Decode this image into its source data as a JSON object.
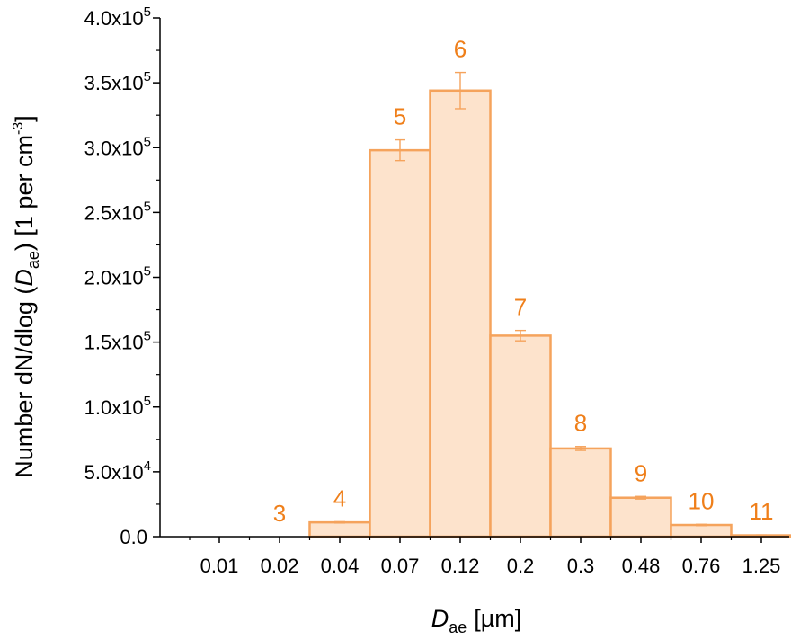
{
  "chart_data": {
    "type": "bar",
    "xlabel": {
      "symbol": "D",
      "subscript": "ae",
      "unit": "[µm]"
    },
    "ylabel": {
      "prefix": "Number dN/dlog (",
      "symbol": "D",
      "subscript": "ae",
      "suffix": ") [1 per cm",
      "exp": "-3",
      "close": "]"
    },
    "x_tick_labels": [
      "0.01",
      "0.02",
      "0.04",
      "0.07",
      "0.12",
      "0.2",
      "0.3",
      "0.48",
      "0.76",
      "1.25"
    ],
    "y_tick_labels": [
      {
        "mant": "0.0",
        "exp": ""
      },
      {
        "mant": "5.0x10",
        "exp": "4"
      },
      {
        "mant": "1.0x10",
        "exp": "5"
      },
      {
        "mant": "1.5x10",
        "exp": "5"
      },
      {
        "mant": "2.0x10",
        "exp": "5"
      },
      {
        "mant": "2.5x10",
        "exp": "5"
      },
      {
        "mant": "3.0x10",
        "exp": "5"
      },
      {
        "mant": "3.5x10",
        "exp": "5"
      },
      {
        "mant": "4.0x10",
        "exp": "5"
      }
    ],
    "ylim": [
      0,
      400000
    ],
    "bars": [
      {
        "label": "3",
        "value": 0,
        "error": 0
      },
      {
        "label": "4",
        "value": 11000,
        "error": 500
      },
      {
        "label": "5",
        "value": 298000,
        "error": 8000
      },
      {
        "label": "6",
        "value": 344000,
        "error": 14000
      },
      {
        "label": "7",
        "value": 155000,
        "error": 4000
      },
      {
        "label": "8",
        "value": 68000,
        "error": 1500
      },
      {
        "label": "9",
        "value": 30000,
        "error": 1000
      },
      {
        "label": "10",
        "value": 9000,
        "error": 500
      },
      {
        "label": "11",
        "value": 1000,
        "error": 300
      }
    ],
    "colors": {
      "bar_fill": "#fde3cc",
      "bar_stroke": "#f5a35c",
      "label": "#ef7f1a",
      "error": "#f5a35c",
      "axis": "#000000"
    }
  }
}
